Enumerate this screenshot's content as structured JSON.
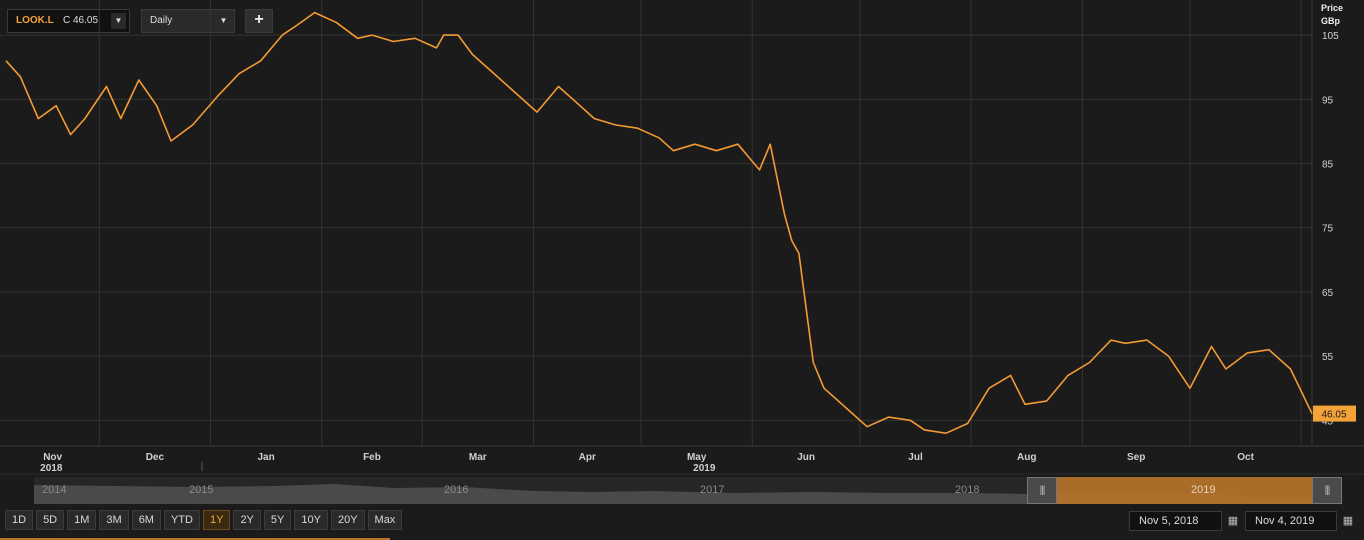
{
  "toolbar": {
    "symbol": "LOOK.L",
    "close_label": "C 46.05",
    "interval": "Daily",
    "dropdown_glyph": "▼",
    "add_glyph": "+"
  },
  "axis_title": {
    "line1": "Price",
    "line2": "GBp"
  },
  "last_price": "46.05",
  "colors": {
    "line": "#f39a33",
    "grid": "#333333",
    "background": "#1b1b1b",
    "accent": "#f4a339"
  },
  "chart_data": {
    "type": "line",
    "y_ticks": [
      105,
      95,
      85,
      75,
      65,
      55,
      45
    ],
    "y_tick_labels": [
      "105",
      "95",
      "85",
      "75",
      "65",
      "55",
      "45"
    ],
    "ylim": [
      41,
      110
    ],
    "x_month_labels": [
      "Nov",
      "Dec",
      "Jan",
      "Feb",
      "Mar",
      "Apr",
      "May",
      "Jun",
      "Jul",
      "Aug",
      "Sep",
      "Oct"
    ],
    "x_year_labels": [
      "2018",
      "2019"
    ],
    "xlim": [
      "2018-11-05",
      "2019-11-04"
    ],
    "month_starts": [
      "2018-11-01",
      "2018-12-01",
      "2019-01-01",
      "2019-02-01",
      "2019-03-01",
      "2019-04-01",
      "2019-05-01",
      "2019-06-01",
      "2019-07-01",
      "2019-08-01",
      "2019-09-01",
      "2019-10-01",
      "2019-11-01"
    ],
    "series": [
      {
        "x": [
          "2018-11-05",
          "2018-11-09",
          "2018-11-14",
          "2018-11-19",
          "2018-11-23",
          "2018-11-27",
          "2018-12-03",
          "2018-12-07",
          "2018-12-12",
          "2018-12-17",
          "2018-12-21",
          "2018-12-27",
          "2019-01-03",
          "2019-01-09",
          "2019-01-15",
          "2019-01-21",
          "2019-01-25",
          "2019-01-30",
          "2019-02-05",
          "2019-02-11",
          "2019-02-15",
          "2019-02-21",
          "2019-02-27",
          "2019-03-05",
          "2019-03-07",
          "2019-03-11",
          "2019-03-15",
          "2019-03-21",
          "2019-03-27",
          "2019-04-02",
          "2019-04-08",
          "2019-04-12",
          "2019-04-18",
          "2019-04-24",
          "2019-04-30",
          "2019-05-06",
          "2019-05-10",
          "2019-05-16",
          "2019-05-22",
          "2019-05-28",
          "2019-05-31",
          "2019-06-03",
          "2019-06-06",
          "2019-06-10",
          "2019-06-12",
          "2019-06-14",
          "2019-06-18",
          "2019-06-21",
          "2019-06-27",
          "2019-07-03",
          "2019-07-09",
          "2019-07-15",
          "2019-07-19",
          "2019-07-25",
          "2019-07-31",
          "2019-08-06",
          "2019-08-12",
          "2019-08-16",
          "2019-08-22",
          "2019-08-28",
          "2019-09-03",
          "2019-09-09",
          "2019-09-13",
          "2019-09-19",
          "2019-09-25",
          "2019-10-01",
          "2019-10-07",
          "2019-10-11",
          "2019-10-17",
          "2019-10-23",
          "2019-10-29",
          "2019-11-04"
        ],
        "values": [
          101,
          98.5,
          92,
          94,
          89.5,
          92,
          97,
          92,
          98,
          94,
          88.5,
          91,
          95.5,
          99,
          101,
          105,
          106.5,
          108.5,
          107,
          104.5,
          105,
          104,
          104.5,
          103,
          105,
          105,
          102,
          99,
          96,
          93,
          97,
          95,
          92,
          91,
          90.5,
          89,
          87,
          88,
          87,
          88,
          86,
          84,
          88,
          77,
          73,
          71,
          54,
          50,
          47,
          44,
          45.5,
          45,
          43.5,
          43,
          44.5,
          50,
          52,
          47.5,
          48,
          52,
          54,
          57.5,
          57,
          57.5,
          55,
          50,
          56.5,
          53,
          55.5,
          56,
          53,
          46.05
        ]
      }
    ]
  },
  "navigator": {
    "years": [
      "2014",
      "2015",
      "2016",
      "2017",
      "2018",
      "2019"
    ],
    "handle_glyph": "|||"
  },
  "ranges": [
    "1D",
    "5D",
    "1M",
    "3M",
    "6M",
    "YTD",
    "1Y",
    "2Y",
    "5Y",
    "10Y",
    "20Y",
    "Max"
  ],
  "active_range": "1Y",
  "date_range": {
    "from": "Nov 5, 2018",
    "to": "Nov 4, 2019"
  },
  "calendar_glyph": "▦"
}
